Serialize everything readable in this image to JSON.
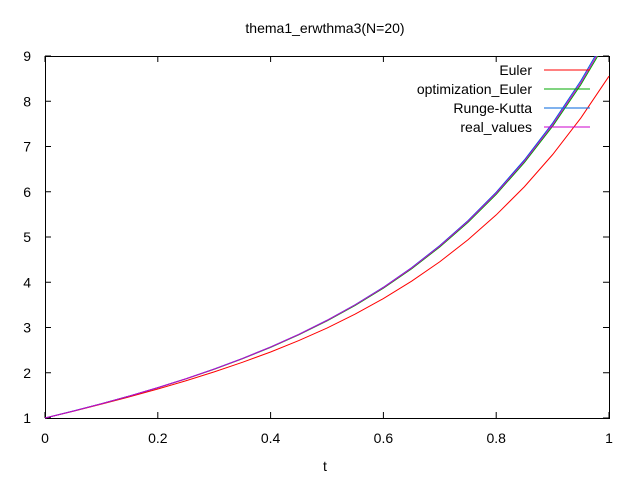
{
  "chart_data": {
    "type": "line",
    "title": "thema1_erwthma3(N=20)",
    "xlabel": "t",
    "ylabel": "",
    "xlim": [
      0,
      1
    ],
    "ylim": [
      1,
      9
    ],
    "xticks": [
      0,
      0.2,
      0.4,
      0.6,
      0.8,
      1
    ],
    "xtick_labels": [
      "0",
      "0.2",
      "0.4",
      "0.6",
      "0.8",
      "1"
    ],
    "yticks": [
      1,
      2,
      3,
      4,
      5,
      6,
      7,
      8,
      9
    ],
    "ytick_labels": [
      "1",
      "2",
      "3",
      "4",
      "5",
      "6",
      "7",
      "8",
      "9"
    ],
    "grid": false,
    "legend_position": "top-right",
    "x": [
      0,
      0.05,
      0.1,
      0.15,
      0.2,
      0.25,
      0.3,
      0.35,
      0.4,
      0.45,
      0.5,
      0.55,
      0.6,
      0.65,
      0.7,
      0.75,
      0.8,
      0.85,
      0.9,
      0.95,
      1
    ],
    "series": [
      {
        "name": "Euler",
        "color": "#ff0000",
        "values": [
          1.0,
          1.15,
          1.306,
          1.469,
          1.641,
          1.823,
          2.019,
          2.23,
          2.459,
          2.711,
          2.988,
          3.296,
          3.639,
          4.023,
          4.453,
          4.939,
          5.488,
          6.111,
          6.82,
          7.629,
          8.554
        ]
      },
      {
        "name": "optimization_Euler",
        "color": "#00aa00",
        "values": [
          1.0,
          1.153,
          1.315,
          1.486,
          1.669,
          1.865,
          2.078,
          2.309,
          2.561,
          2.839,
          3.146,
          3.488,
          3.869,
          4.297,
          4.779,
          5.324,
          5.942,
          6.645,
          7.447,
          8.365,
          9.418
        ]
      },
      {
        "name": "Runge-Kutta",
        "color": "#0066dd",
        "values": [
          1.0,
          1.154,
          1.316,
          1.488,
          1.672,
          1.869,
          2.083,
          2.316,
          2.57,
          2.85,
          3.16,
          3.505,
          3.89,
          4.323,
          4.811,
          5.363,
          5.99,
          6.704,
          7.519,
          8.453,
          9.524
        ]
      },
      {
        "name": "real_values",
        "color": "#cc00cc",
        "values": [
          1.0,
          1.153,
          1.315,
          1.487,
          1.671,
          1.868,
          2.082,
          2.314,
          2.568,
          2.847,
          3.156,
          3.5,
          3.883,
          4.313,
          4.798,
          5.346,
          5.967,
          6.675,
          7.482,
          8.407,
          9.469
        ]
      }
    ]
  }
}
